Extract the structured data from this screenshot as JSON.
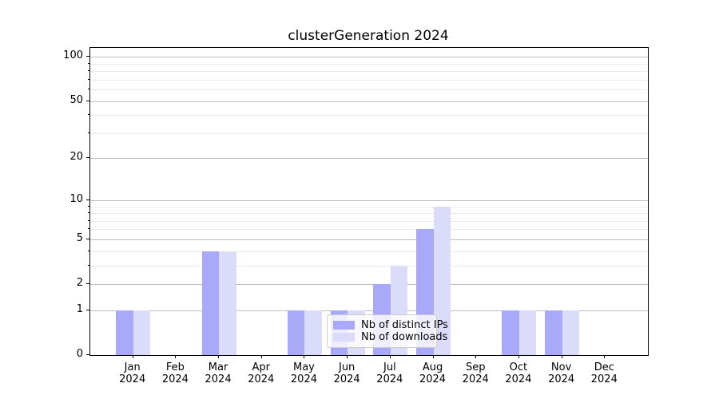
{
  "figure": {
    "background": "#ffffff"
  },
  "chart_data": {
    "type": "bar",
    "title": "clusterGeneration 2024",
    "categories": [
      "Jan",
      "Feb",
      "Mar",
      "Apr",
      "May",
      "Jun",
      "Jul",
      "Aug",
      "Sep",
      "Oct",
      "Nov",
      "Dec"
    ],
    "category_year": "2024",
    "series": [
      {
        "name": "Nb of distinct IPs",
        "color": "#a9a9f9",
        "values": [
          1,
          0,
          4,
          0,
          1,
          1,
          2,
          6,
          0,
          1,
          1,
          0
        ]
      },
      {
        "name": "Nb of downloads",
        "color": "#dbdbfa",
        "values": [
          1,
          0,
          4,
          0,
          1,
          1,
          3,
          9,
          0,
          1,
          1,
          0
        ]
      }
    ],
    "xlabel": "",
    "ylabel": "",
    "yscale": "log1p",
    "ylim": [
      0,
      115
    ],
    "yticks_major": [
      0,
      1,
      2,
      5,
      10,
      20,
      50,
      100
    ],
    "yticks_minor": [
      3,
      4,
      6,
      7,
      8,
      9,
      30,
      40,
      60,
      70,
      80,
      90
    ],
    "grid": "both",
    "legend_position": "lower-center-inside",
    "colors": {
      "grid_major": "#bdbdbd",
      "grid_minor": "#e9e9e9",
      "axis": "#000000",
      "bar_series_1": "#a9a9f9",
      "bar_series_2": "#dbdbfa"
    }
  }
}
